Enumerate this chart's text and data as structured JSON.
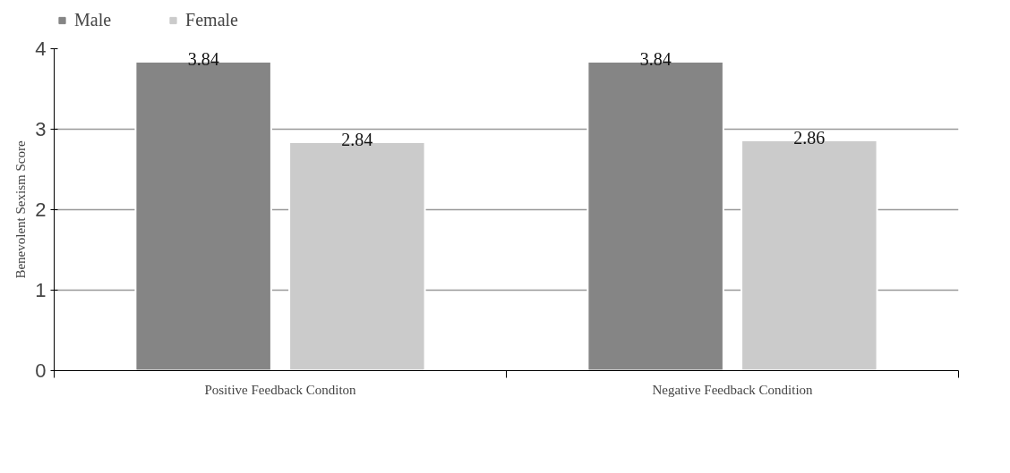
{
  "chart_data": {
    "type": "bar",
    "ylabel": "Benevolent Sexism Score",
    "categories": [
      "Positive Feedback Conditon",
      "Negative Feedback Condition"
    ],
    "series": [
      {
        "name": "Male",
        "color": "#858585",
        "values": [
          3.84,
          3.84
        ]
      },
      {
        "name": "Female",
        "color": "#cbcbcb",
        "values": [
          2.84,
          2.86
        ]
      }
    ],
    "ylim": [
      0,
      4
    ],
    "yticks": [
      0,
      1,
      2,
      3,
      4
    ],
    "grid": "y",
    "legend": "top left",
    "data_labels": true
  }
}
